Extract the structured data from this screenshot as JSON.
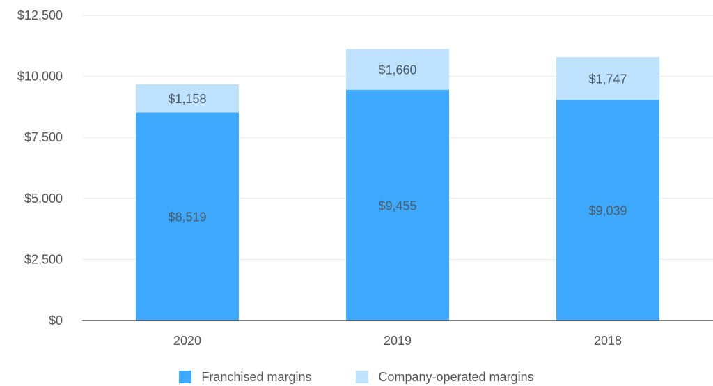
{
  "colors": {
    "franchised": "#3fa9ff",
    "company_operated": "#bfe2ff",
    "grid": "#e8e8e8",
    "axis": "#555555",
    "tick_text": "#555555",
    "data_label_text": "#4a5b6a"
  },
  "legend": {
    "placement": "bottom-center",
    "items": [
      {
        "label": "Franchised margins",
        "color": "#3fa9ff"
      },
      {
        "label": "Company-operated margins",
        "color": "#bfe2ff"
      }
    ]
  },
  "chart_data": {
    "type": "bar",
    "stacked": true,
    "categories": [
      "2020",
      "2019",
      "2018"
    ],
    "series": [
      {
        "name": "Franchised margins",
        "values": [
          8519,
          9455,
          9039
        ],
        "labels": [
          "$8,519",
          "$9,455",
          "$9,039"
        ]
      },
      {
        "name": "Company-operated margins",
        "values": [
          1158,
          1660,
          1747
        ],
        "labels": [
          "$1,158",
          "$1,660",
          "$1,747"
        ]
      }
    ],
    "title": "",
    "xlabel": "",
    "ylabel": "",
    "ylim": [
      0,
      12500
    ],
    "y_ticks": [
      0,
      2500,
      5000,
      7500,
      10000,
      12500
    ],
    "y_tick_labels": [
      "$0",
      "$2,500",
      "$5,000",
      "$7,500",
      "$10,000",
      "$12,500"
    ],
    "grid": true
  }
}
